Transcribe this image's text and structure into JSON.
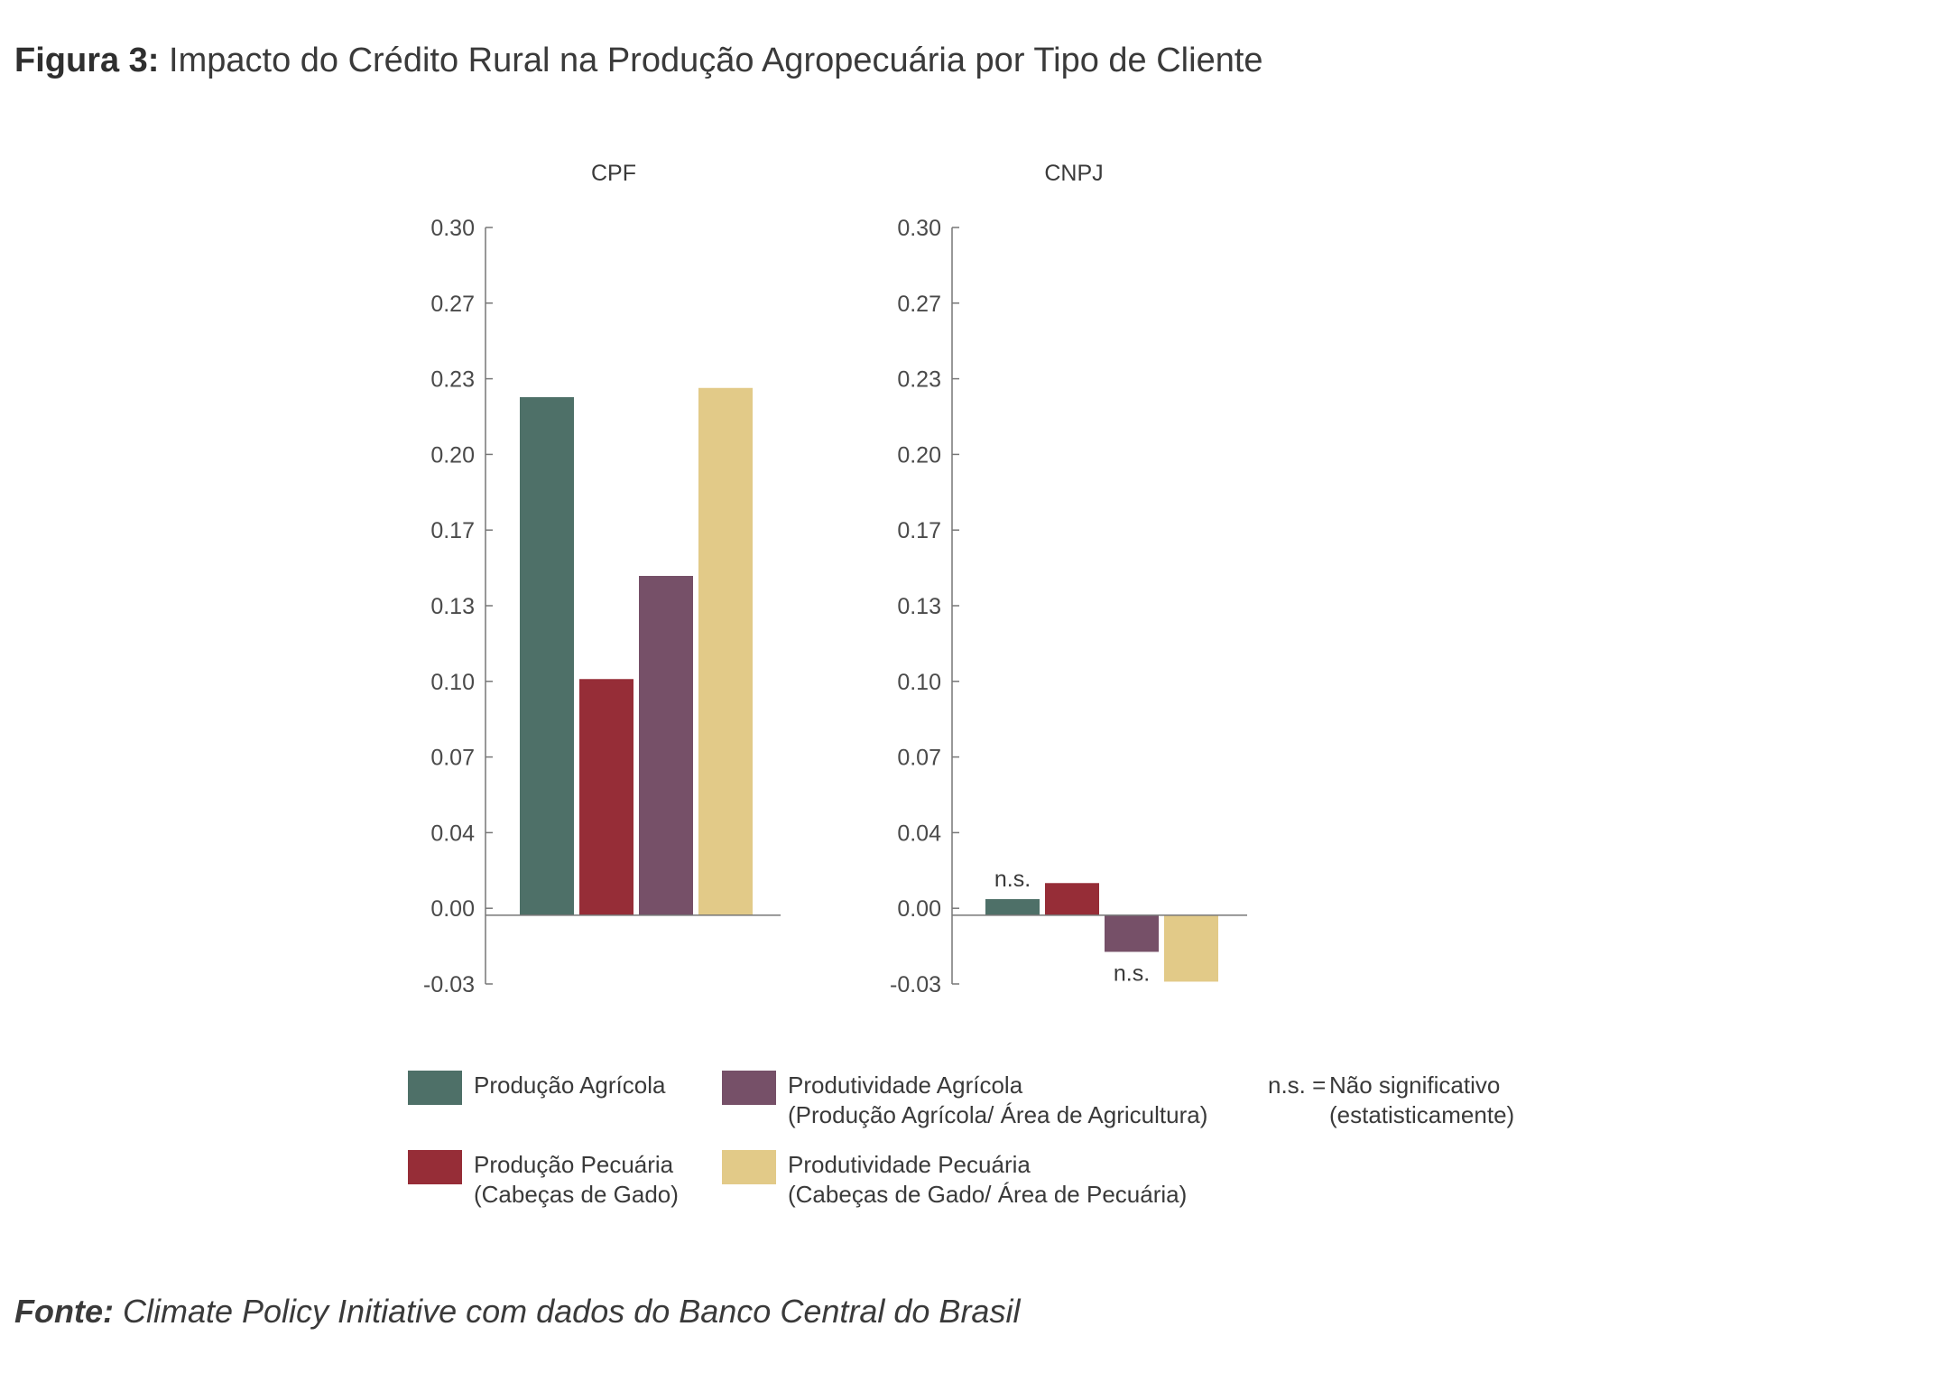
{
  "figure": {
    "label": "Figura 3:",
    "title": "Impacto do Crédito Rural na Produção Agropecuária por Tipo de Cliente"
  },
  "source": {
    "label": "Fonte:",
    "text": "Climate Policy Initiative com dados do Banco Central do Brasil"
  },
  "colors": {
    "producao_agricola": "#4e7068",
    "producao_pecuaria": "#962d37",
    "produtividade_agricola": "#765068",
    "produtividade_pecuaria": "#e2ca88"
  },
  "legend": {
    "items": [
      {
        "line1": "Produção Agrícola",
        "line2": ""
      },
      {
        "line1": "Produção Pecuária",
        "line2": "(Cabeças de Gado)"
      },
      {
        "line1": "Produtividade Agrícola",
        "line2": "(Produção Agrícola/ Área de Agricultura)"
      },
      {
        "line1": "Produtividade Pecuária",
        "line2": "(Cabeças de Gado/ Área de Pecuária)"
      }
    ],
    "ns_key": "n.s. =",
    "ns_line1": "Não significativo",
    "ns_line2": "(estatisticamente)"
  },
  "chart_data": [
    {
      "type": "bar",
      "title": "CPF",
      "series": [
        {
          "name": "Produção Agrícola",
          "value": 0.226,
          "ns": false
        },
        {
          "name": "Produção Pecuária",
          "value": 0.103,
          "ns": false
        },
        {
          "name": "Produtividade Agrícola",
          "value": 0.148,
          "ns": false
        },
        {
          "name": "Produtividade Pecuária",
          "value": 0.23,
          "ns": false
        }
      ],
      "yticks": [
        "0.30",
        "0.27",
        "0.23",
        "0.20",
        "0.17",
        "0.13",
        "0.10",
        "0.07",
        "0.04",
        "0.00",
        "-0.03"
      ],
      "ylim": [
        -0.03,
        0.3
      ],
      "grid": false
    },
    {
      "type": "bar",
      "title": "CNPJ",
      "series": [
        {
          "name": "Produção Agrícola",
          "value": 0.007,
          "ns": true
        },
        {
          "name": "Produção Pecuária",
          "value": 0.014,
          "ns": false
        },
        {
          "name": "Produtividade Agrícola",
          "value": -0.016,
          "ns": true
        },
        {
          "name": "Produtividade Pecuária",
          "value": -0.029,
          "ns": false
        }
      ],
      "yticks": [
        "0.30",
        "0.27",
        "0.23",
        "0.20",
        "0.17",
        "0.13",
        "0.10",
        "0.07",
        "0.04",
        "0.00",
        "-0.03"
      ],
      "ylim": [
        -0.03,
        0.3
      ],
      "grid": false,
      "ns_label": "n.s."
    }
  ]
}
